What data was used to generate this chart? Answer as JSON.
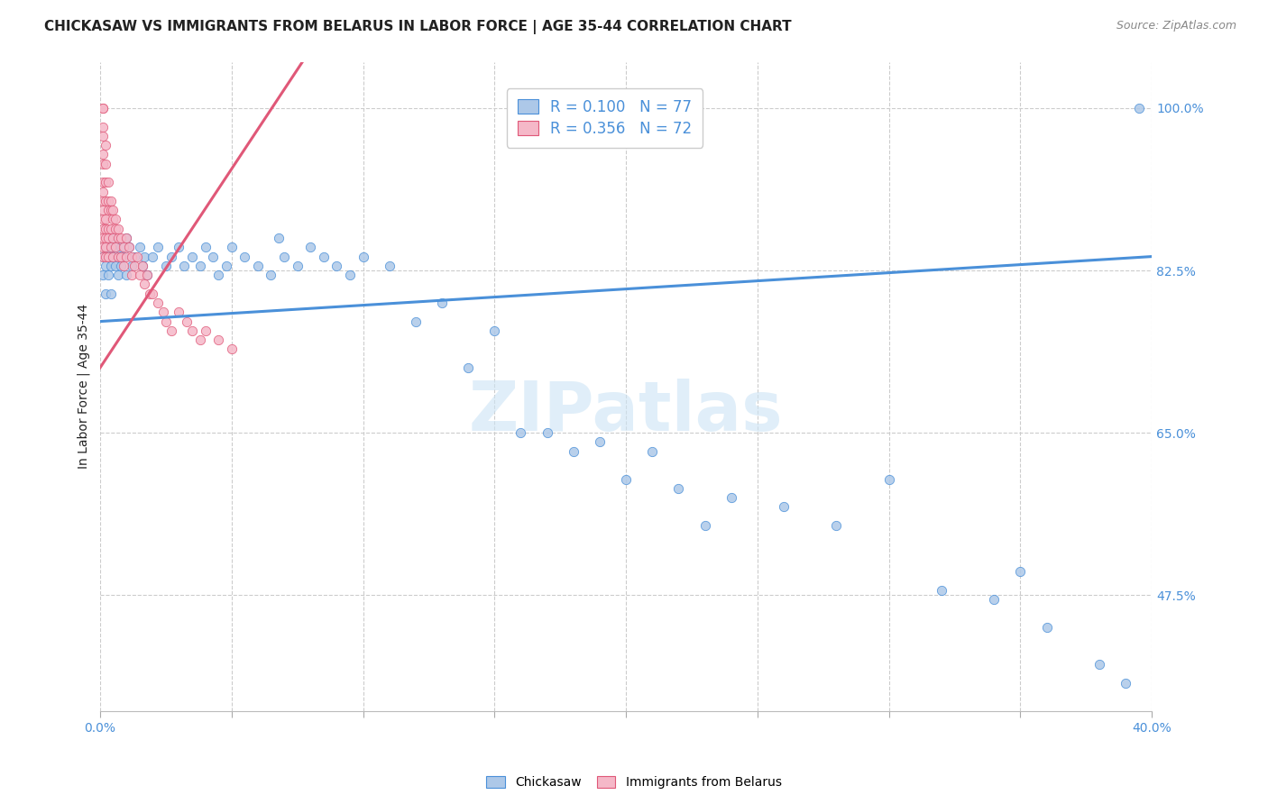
{
  "title": "CHICKASAW VS IMMIGRANTS FROM BELARUS IN LABOR FORCE | AGE 35-44 CORRELATION CHART",
  "source": "Source: ZipAtlas.com",
  "ylabel": "In Labor Force | Age 35-44",
  "xlim": [
    0.0,
    0.4
  ],
  "ylim": [
    0.35,
    1.05
  ],
  "yticks": [
    0.475,
    0.65,
    0.825,
    1.0
  ],
  "ytick_labels": [
    "47.5%",
    "65.0%",
    "82.5%",
    "100.0%"
  ],
  "xticks": [
    0.0,
    0.05,
    0.1,
    0.15,
    0.2,
    0.25,
    0.3,
    0.35,
    0.4
  ],
  "xtick_labels": [
    "0.0%",
    "",
    "",
    "",
    "",
    "",
    "",
    "",
    "40.0%"
  ],
  "chickasaw_color": "#adc8e8",
  "belarus_color": "#f5b8c8",
  "trendline_chickasaw_color": "#4a90d9",
  "trendline_belarus_color": "#e05878",
  "R_chickasaw": 0.1,
  "N_chickasaw": 77,
  "R_belarus": 0.356,
  "N_belarus": 72,
  "watermark": "ZIPatlas",
  "title_fontsize": 11,
  "source_fontsize": 9,
  "axis_label_fontsize": 10,
  "tick_fontsize": 10,
  "legend_fontsize": 12,
  "watermark_fontsize": 55,
  "background_color": "#ffffff",
  "grid_color": "#cccccc",
  "tick_color": "#4a90d9",
  "title_color": "#222222",
  "chickasaw_x": [
    0.001,
    0.001,
    0.002,
    0.002,
    0.002,
    0.003,
    0.003,
    0.003,
    0.004,
    0.004,
    0.004,
    0.005,
    0.005,
    0.006,
    0.006,
    0.007,
    0.007,
    0.008,
    0.008,
    0.009,
    0.01,
    0.01,
    0.011,
    0.012,
    0.013,
    0.015,
    0.016,
    0.017,
    0.018,
    0.02,
    0.022,
    0.025,
    0.027,
    0.03,
    0.032,
    0.035,
    0.038,
    0.04,
    0.043,
    0.045,
    0.048,
    0.05,
    0.055,
    0.06,
    0.065,
    0.068,
    0.07,
    0.075,
    0.08,
    0.085,
    0.09,
    0.095,
    0.1,
    0.11,
    0.12,
    0.13,
    0.14,
    0.15,
    0.16,
    0.17,
    0.18,
    0.19,
    0.2,
    0.21,
    0.22,
    0.23,
    0.24,
    0.26,
    0.28,
    0.3,
    0.32,
    0.34,
    0.35,
    0.36,
    0.38,
    0.39,
    0.395
  ],
  "chickasaw_y": [
    0.84,
    0.82,
    0.85,
    0.83,
    0.8,
    0.86,
    0.84,
    0.82,
    0.85,
    0.83,
    0.8,
    0.86,
    0.84,
    0.85,
    0.83,
    0.84,
    0.82,
    0.85,
    0.83,
    0.84,
    0.86,
    0.82,
    0.85,
    0.83,
    0.84,
    0.85,
    0.83,
    0.84,
    0.82,
    0.84,
    0.85,
    0.83,
    0.84,
    0.85,
    0.83,
    0.84,
    0.83,
    0.85,
    0.84,
    0.82,
    0.83,
    0.85,
    0.84,
    0.83,
    0.82,
    0.86,
    0.84,
    0.83,
    0.85,
    0.84,
    0.83,
    0.82,
    0.84,
    0.83,
    0.77,
    0.79,
    0.72,
    0.76,
    0.65,
    0.65,
    0.63,
    0.64,
    0.6,
    0.63,
    0.59,
    0.55,
    0.58,
    0.57,
    0.55,
    0.6,
    0.48,
    0.47,
    0.5,
    0.44,
    0.4,
    0.38,
    1.0
  ],
  "belarus_x": [
    0.001,
    0.001,
    0.001,
    0.001,
    0.001,
    0.001,
    0.001,
    0.001,
    0.001,
    0.001,
    0.001,
    0.001,
    0.001,
    0.001,
    0.001,
    0.002,
    0.002,
    0.002,
    0.002,
    0.002,
    0.002,
    0.002,
    0.002,
    0.002,
    0.003,
    0.003,
    0.003,
    0.003,
    0.003,
    0.003,
    0.004,
    0.004,
    0.004,
    0.004,
    0.005,
    0.005,
    0.005,
    0.005,
    0.006,
    0.006,
    0.006,
    0.007,
    0.007,
    0.007,
    0.008,
    0.008,
    0.009,
    0.009,
    0.01,
    0.01,
    0.011,
    0.012,
    0.012,
    0.013,
    0.014,
    0.015,
    0.016,
    0.017,
    0.018,
    0.019,
    0.02,
    0.022,
    0.024,
    0.025,
    0.027,
    0.03,
    0.033,
    0.035,
    0.038,
    0.04,
    0.045,
    0.05
  ],
  "belarus_y": [
    1.0,
    1.0,
    0.98,
    0.97,
    0.95,
    0.94,
    0.92,
    0.91,
    0.9,
    0.89,
    0.88,
    0.87,
    0.86,
    0.85,
    0.84,
    0.96,
    0.94,
    0.92,
    0.9,
    0.88,
    0.87,
    0.86,
    0.85,
    0.84,
    0.92,
    0.9,
    0.89,
    0.87,
    0.86,
    0.84,
    0.9,
    0.89,
    0.87,
    0.85,
    0.89,
    0.88,
    0.86,
    0.84,
    0.88,
    0.87,
    0.85,
    0.87,
    0.86,
    0.84,
    0.86,
    0.84,
    0.85,
    0.83,
    0.86,
    0.84,
    0.85,
    0.84,
    0.82,
    0.83,
    0.84,
    0.82,
    0.83,
    0.81,
    0.82,
    0.8,
    0.8,
    0.79,
    0.78,
    0.77,
    0.76,
    0.78,
    0.77,
    0.76,
    0.75,
    0.76,
    0.75,
    0.74
  ]
}
